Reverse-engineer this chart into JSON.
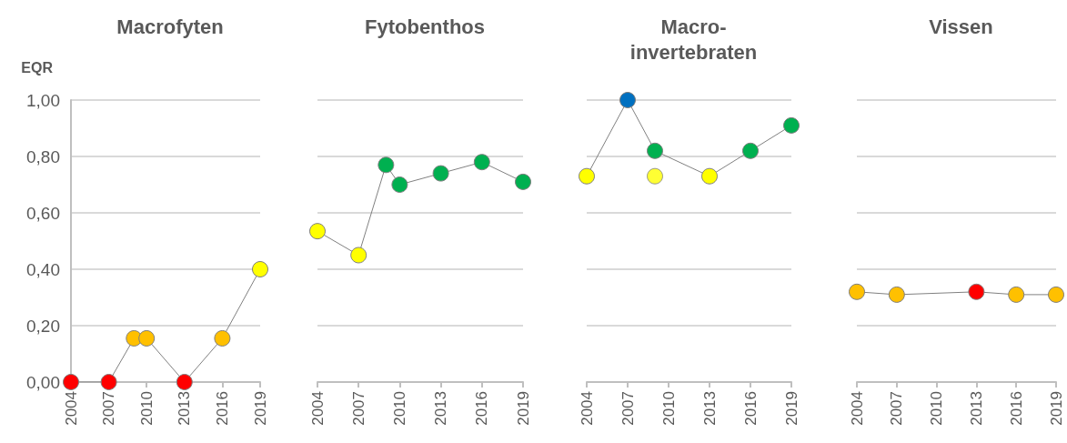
{
  "chart_data": [
    {
      "type": "line",
      "title": "Macrofyten",
      "ylabel": "EQR",
      "xlim": [
        2004,
        2019
      ],
      "xticks": [
        2004,
        2007,
        2010,
        2013,
        2016,
        2019
      ],
      "ylim": [
        0,
        1
      ],
      "yticks": [
        {
          "value": 0,
          "label": "0,00"
        },
        {
          "value": 0.2,
          "label": "0,20"
        },
        {
          "value": 0.4,
          "label": "0,40"
        },
        {
          "value": 0.6,
          "label": "0,60"
        },
        {
          "value": 0.8,
          "label": "0,80"
        },
        {
          "value": 1,
          "label": "1,00"
        }
      ],
      "grid": "y",
      "marker": "circle",
      "series": [
        {
          "color": "#808080",
          "x": [
            2004,
            2007,
            2009,
            2010,
            2013,
            2016,
            2019
          ],
          "values": [
            0,
            0,
            0.155,
            0.155,
            0,
            0.155,
            0.4
          ],
          "colors": [
            "#ff0000",
            "#ff0000",
            "#ffc000",
            "#ffc000",
            "#ff0000",
            "#ffc000",
            "#ffff00"
          ]
        }
      ]
    },
    {
      "type": "line",
      "title": "Fytobenthos",
      "xlim": [
        2004,
        2019
      ],
      "xticks": [
        2004,
        2007,
        2010,
        2013,
        2016,
        2019
      ],
      "ylim": [
        0,
        1
      ],
      "yticks": [
        0,
        0.2,
        0.4,
        0.6,
        0.8,
        1
      ],
      "grid": "y",
      "marker": "circle",
      "tick_labels": "x",
      "series": [
        {
          "color": "#808080",
          "x": [
            2004,
            2007,
            2009,
            2010,
            2013,
            2016,
            2019
          ],
          "values": [
            0.535,
            0.45,
            0.77,
            0.7,
            0.74,
            0.78,
            0.71
          ],
          "colors": [
            "#ffff00",
            "#ffff00",
            "#00b050",
            "#00b050",
            "#00b050",
            "#00b050",
            "#00b050"
          ]
        }
      ]
    },
    {
      "type": "line",
      "title": "Macro-\ninvertebraten",
      "xlim": [
        2004,
        2019
      ],
      "xticks": [
        2004,
        2007,
        2010,
        2013,
        2016,
        2019
      ],
      "ylim": [
        0,
        1
      ],
      "yticks": [
        0,
        0.2,
        0.4,
        0.6,
        0.8,
        1
      ],
      "grid": "y",
      "marker": "circle",
      "tick_labels": "x",
      "series": [
        {
          "color": "#808080",
          "x": [
            2004,
            2007,
            2009,
            2013,
            2016,
            2019
          ],
          "values": [
            0.73,
            1.0,
            0.82,
            0.73,
            0.82,
            0.91
          ],
          "colors": [
            "#ffff00",
            "#0070c0",
            "#00b050",
            "#ffff00",
            "#00b050",
            "#00b050"
          ]
        },
        {
          "type": "scatter",
          "color": "#ffff00",
          "x": [
            2009
          ],
          "values": [
            0.73
          ],
          "colors": [
            "#ffff00"
          ]
        }
      ]
    },
    {
      "type": "line",
      "title": "Vissen",
      "xlim": [
        2004,
        2019
      ],
      "xticks": [
        2004,
        2007,
        2010,
        2013,
        2016,
        2019
      ],
      "ylim": [
        0,
        1
      ],
      "yticks": [
        0,
        0.2,
        0.4,
        0.6,
        0.8,
        1
      ],
      "grid": "y",
      "marker": "circle",
      "tick_labels": "x",
      "series": [
        {
          "color": "#808080",
          "x": [
            2004,
            2007,
            2013,
            2016,
            2019
          ],
          "values": [
            0.32,
            0.31,
            0.32,
            0.31,
            0.31
          ],
          "colors": [
            "#ffc000",
            "#ffc000",
            "#ff0000",
            "#ffc000",
            "#ffc000"
          ]
        }
      ]
    }
  ]
}
